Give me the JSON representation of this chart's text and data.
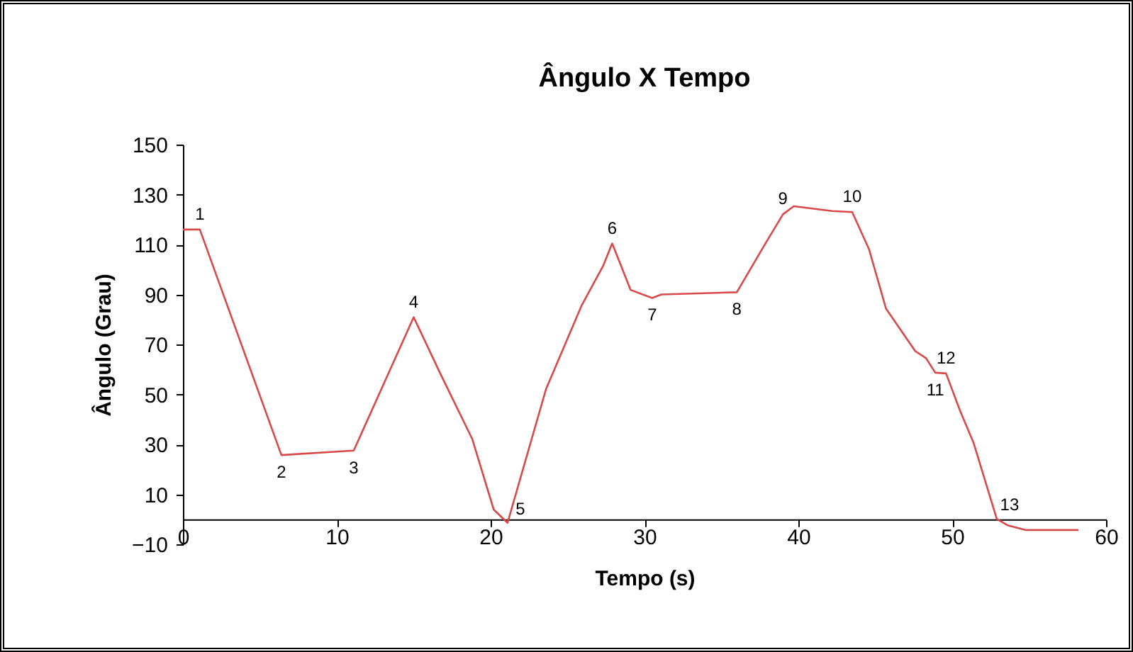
{
  "chart_data": {
    "type": "line",
    "title": "Ângulo X Tempo",
    "xlabel": "Tempo (s)",
    "ylabel": "Ângulo (Grau)",
    "xlim": [
      0,
      60
    ],
    "xticks": [
      0,
      10,
      20,
      30,
      40,
      50,
      60
    ],
    "ylim": [
      -10,
      150
    ],
    "yticks": [
      -10,
      10,
      30,
      50,
      70,
      90,
      110,
      130,
      150
    ],
    "grid": false,
    "legend": false,
    "series": [
      {
        "color": "#d84a4a",
        "x": [
          0,
          1.1,
          6.4,
          11.1,
          15.0,
          16.7,
          18.8,
          20.2,
          21.1,
          23.6,
          25.9,
          27.3,
          27.9,
          29.1,
          30.5,
          31.1,
          36.0,
          37.9,
          39.0,
          39.7,
          42.2,
          43.5,
          44.6,
          45.7,
          47.6,
          48.3,
          48.9,
          49.6,
          50.5,
          51.4,
          52.9,
          53.6,
          54.8,
          58.2
        ],
        "values": [
          116,
          116,
          25.7,
          27.5,
          80.9,
          58.7,
          32.2,
          3.9,
          -1.4,
          52.1,
          85.4,
          101.3,
          110.4,
          91.8,
          88.6,
          90,
          90.9,
          110.8,
          122.1,
          125.3,
          123.4,
          123,
          108,
          84.3,
          67.3,
          64.5,
          58.7,
          58.4,
          43.6,
          30.4,
          0.1,
          -2.4,
          -4.3,
          -4.3
        ]
      }
    ],
    "annotations": [
      {
        "text": "1",
        "x": 1.1,
        "y": 116
      },
      {
        "text": "2",
        "x": 6.4,
        "y": 25.7
      },
      {
        "text": "3",
        "x": 11.1,
        "y": 27.5
      },
      {
        "text": "4",
        "x": 15.0,
        "y": 80.9
      },
      {
        "text": "5",
        "x": 21.1,
        "y": -1.4
      },
      {
        "text": "6",
        "x": 27.9,
        "y": 110.4
      },
      {
        "text": "7",
        "x": 30.5,
        "y": 88.6
      },
      {
        "text": "8",
        "x": 36.0,
        "y": 90.9
      },
      {
        "text": "9",
        "x": 39.0,
        "y": 122.1
      },
      {
        "text": "10",
        "x": 43.5,
        "y": 123
      },
      {
        "text": "11",
        "x": 48.9,
        "y": 58.7
      },
      {
        "text": "12",
        "x": 49.6,
        "y": 58.4
      },
      {
        "text": "13",
        "x": 52.9,
        "y": 0.1
      }
    ]
  }
}
